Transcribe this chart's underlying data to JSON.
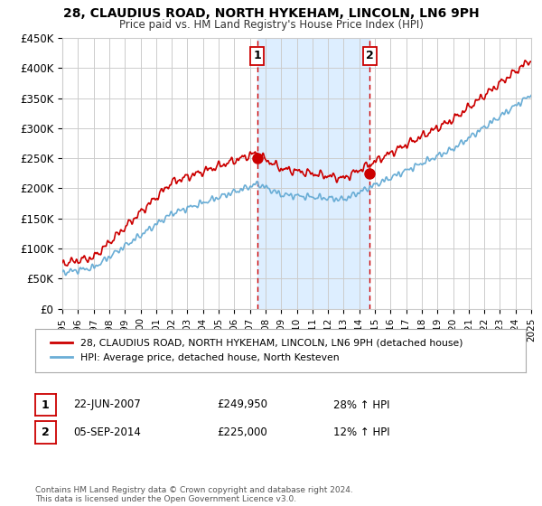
{
  "title": "28, CLAUDIUS ROAD, NORTH HYKEHAM, LINCOLN, LN6 9PH",
  "subtitle": "Price paid vs. HM Land Registry's House Price Index (HPI)",
  "legend_label1": "28, CLAUDIUS ROAD, NORTH HYKEHAM, LINCOLN, LN6 9PH (detached house)",
  "legend_label2": "HPI: Average price, detached house, North Kesteven",
  "annotation1_date": "22-JUN-2007",
  "annotation1_price": "£249,950",
  "annotation1_hpi": "28% ↑ HPI",
  "annotation2_date": "05-SEP-2014",
  "annotation2_price": "£225,000",
  "annotation2_hpi": "12% ↑ HPI",
  "footer": "Contains HM Land Registry data © Crown copyright and database right 2024.\nThis data is licensed under the Open Government Licence v3.0.",
  "hpi_color": "#6baed6",
  "price_color": "#cc0000",
  "marker_color": "#cc0000",
  "shading_color": "#ddeeff",
  "vline_color": "#cc0000",
  "background_color": "#ffffff",
  "ylim": [
    0,
    450000
  ],
  "yticks": [
    0,
    50000,
    100000,
    150000,
    200000,
    250000,
    300000,
    350000,
    400000,
    450000
  ],
  "ytick_labels": [
    "£0",
    "£50K",
    "£100K",
    "£150K",
    "£200K",
    "£250K",
    "£300K",
    "£350K",
    "£400K",
    "£450K"
  ],
  "sale1_x": 2007.47,
  "sale1_y": 249950,
  "sale2_x": 2014.67,
  "sale2_y": 225000,
  "vline1_x": 2007.47,
  "vline2_x": 2014.67,
  "xmin": 1995,
  "xmax": 2025
}
